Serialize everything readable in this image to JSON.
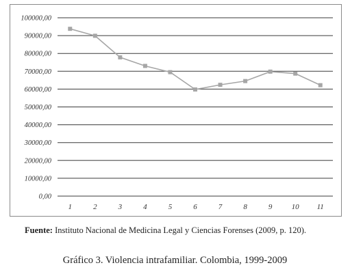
{
  "chart_data": {
    "type": "line",
    "x": [
      "1",
      "2",
      "3",
      "4",
      "5",
      "6",
      "7",
      "8",
      "9",
      "10",
      "11"
    ],
    "series": [
      {
        "values": [
          93800,
          89900,
          77800,
          73000,
          69500,
          59800,
          62400,
          64500,
          69800,
          68700,
          62200
        ],
        "color": "#a6a6a6"
      }
    ],
    "ylim": [
      0,
      100000
    ],
    "yticks": [
      "0,00",
      "10000,00",
      "20000,00",
      "30000,00",
      "40000,00",
      "50000,00",
      "60000,00",
      "70000,00",
      "80000,00",
      "90000,00",
      "100000,00"
    ],
    "grid": true,
    "title": "",
    "xlabel": "",
    "ylabel": ""
  },
  "source": {
    "label": "Fuente:",
    "text": "Instituto Nacional de Medicina Legal y Ciencias Forenses (2009, p. 120)."
  },
  "caption": {
    "label": "Gráfico 3.",
    "text": "Violencia intrafamiliar. Colombia, 1999-2009"
  },
  "colors": {
    "gridline": "#3a3a3a",
    "frame": "#8a8a8a",
    "series": "#a6a6a6"
  }
}
